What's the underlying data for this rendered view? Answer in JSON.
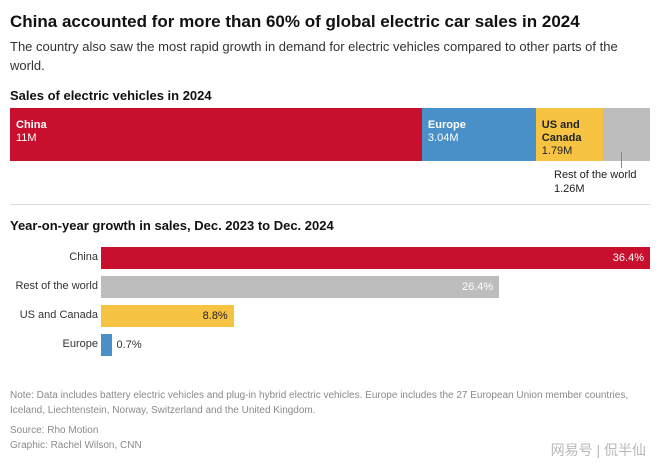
{
  "title": "China accounted for more than 60% of global electric car sales in 2024",
  "subtitle": "The country also saw the most rapid growth in demand for electric vehicles compared to other parts of the world.",
  "watermark": "网易号 | 侃半仙",
  "chart_data": [
    {
      "type": "bar",
      "orientation": "stacked-horizontal",
      "title": "Sales of electric vehicles in 2024",
      "categories": [
        "China",
        "Europe",
        "US and Canada",
        "Rest of the world"
      ],
      "values": [
        11,
        3.04,
        1.79,
        1.26
      ],
      "value_labels": [
        "11M",
        "3.04M",
        "1.79M",
        "1.26M"
      ],
      "units": "million vehicles",
      "colors": [
        "#c8102e",
        "#4a90c8",
        "#f6c343",
        "#bdbdbd"
      ]
    },
    {
      "type": "bar",
      "orientation": "horizontal",
      "title": "Year-on-year growth in sales, Dec. 2023 to Dec. 2024",
      "categories": [
        "China",
        "Rest of the world",
        "US and Canada",
        "Europe"
      ],
      "values": [
        36.4,
        26.4,
        8.8,
        0.7
      ],
      "value_labels": [
        "36.4%",
        "26.4%",
        "8.8%",
        "0.7%"
      ],
      "xlim": [
        0,
        36.4
      ],
      "units": "percent",
      "colors": [
        "#c8102e",
        "#bdbdbd",
        "#f6c343",
        "#4a90c8"
      ]
    }
  ],
  "notes": "Note: Data includes battery electric vehicles and plug-in hybrid electric vehicles. Europe includes the 27 European Union member countries, Iceland, Liechtenstein, Norway, Switzerland and the United Kingdom.",
  "source": "Source: Rho Motion",
  "graphic": "Graphic: Rachel Wilson, CNN"
}
